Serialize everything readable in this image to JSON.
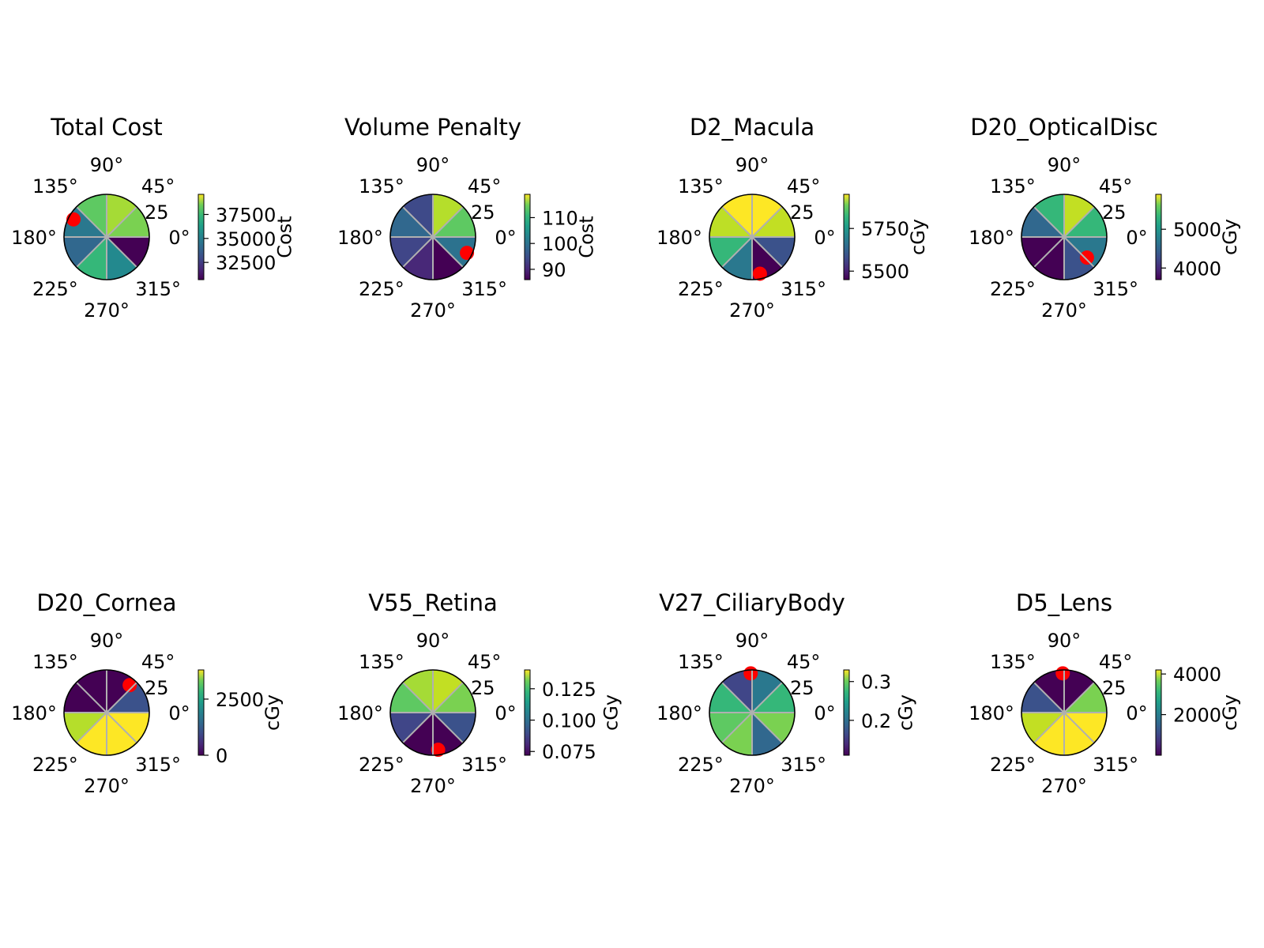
{
  "chart_data": [
    {
      "type": "heatmap",
      "projection": "polar",
      "title": "Total Cost",
      "angle_ticks": [
        "0°",
        "45°",
        "90°",
        "135°",
        "180°",
        "225°",
        "270°",
        "315°"
      ],
      "radial_ticks": [
        "25"
      ],
      "rmax": 25,
      "colormap": "viridis",
      "colorbar": {
        "label": "Cost",
        "range": [
          30700,
          39600
        ],
        "ticks": [
          32500,
          35000,
          37500
        ],
        "tick_labels": [
          "32500",
          "35000",
          "37500"
        ]
      },
      "grid_colors": [
        "#7ad151",
        "#a5db36",
        "#5ec962",
        "#2a788e",
        "#31688e",
        "#35b779",
        "#23898e",
        "#440154"
      ],
      "highlight": {
        "color": "#ff0000",
        "angle_deg": 152,
        "radius": 22
      }
    },
    {
      "type": "heatmap",
      "projection": "polar",
      "title": "Volume Penalty",
      "angle_ticks": [
        "0°",
        "45°",
        "90°",
        "135°",
        "180°",
        "225°",
        "270°",
        "315°"
      ],
      "radial_ticks": [
        "25"
      ],
      "rmax": 25,
      "colormap": "viridis",
      "colorbar": {
        "label": "Cost",
        "range": [
          86,
          119
        ],
        "ticks": [
          90,
          100,
          110
        ],
        "tick_labels": [
          "90",
          "100",
          "110"
        ]
      },
      "grid_colors": [
        "#5ec962",
        "#b5de2b",
        "#3e4a89",
        "#31688e",
        "#404688",
        "#482878",
        "#440154",
        "#2c728e"
      ],
      "highlight": {
        "color": "#ff0000",
        "angle_deg": 335,
        "radius": 22
      }
    },
    {
      "type": "heatmap",
      "projection": "polar",
      "title": "D2_Macula",
      "angle_ticks": [
        "0°",
        "45°",
        "90°",
        "135°",
        "180°",
        "225°",
        "270°",
        "315°"
      ],
      "radial_ticks": [
        "25"
      ],
      "rmax": 25,
      "colormap": "viridis",
      "colorbar": {
        "label": "cGy",
        "range": [
          5450,
          5950
        ],
        "ticks": [
          5500,
          5750
        ],
        "tick_labels": [
          "5500",
          "5750"
        ]
      },
      "grid_colors": [
        "#c2df23",
        "#fde725",
        "#fde725",
        "#bddf26",
        "#35b779",
        "#2a788e",
        "#440154",
        "#3b528b"
      ],
      "highlight": {
        "color": "#ff0000",
        "angle_deg": 282,
        "radius": 22
      }
    },
    {
      "type": "heatmap",
      "projection": "polar",
      "title": "D20_OpticalDisc",
      "angle_ticks": [
        "0°",
        "45°",
        "90°",
        "135°",
        "180°",
        "225°",
        "270°",
        "315°"
      ],
      "radial_ticks": [
        "25"
      ],
      "rmax": 25,
      "colormap": "viridis",
      "colorbar": {
        "label": "cGy",
        "range": [
          3700,
          5900
        ],
        "ticks": [
          4000,
          5000
        ],
        "tick_labels": [
          "4000",
          "5000"
        ]
      },
      "grid_colors": [
        "#35b779",
        "#c2df23",
        "#35b779",
        "#31688e",
        "#440154",
        "#440154",
        "#3b528b",
        "#2a788e"
      ],
      "highlight": {
        "color": "#ff0000",
        "angle_deg": 318,
        "radius": 18
      }
    },
    {
      "type": "heatmap",
      "projection": "polar",
      "title": "D20_Cornea",
      "angle_ticks": [
        "0°",
        "45°",
        "90°",
        "135°",
        "180°",
        "225°",
        "270°",
        "315°"
      ],
      "radial_ticks": [
        "25"
      ],
      "rmax": 25,
      "colormap": "viridis",
      "colorbar": {
        "label": "cGy",
        "range": [
          0,
          3800
        ],
        "ticks": [
          0,
          2500
        ],
        "tick_labels": [
          "0",
          "2500"
        ]
      },
      "grid_colors": [
        "#3b528b",
        "#440154",
        "#440154",
        "#440154",
        "#b5de2b",
        "#fde725",
        "#fde725",
        "#fde725"
      ],
      "highlight": {
        "color": "#ff0000",
        "angle_deg": 50,
        "radius": 21
      }
    },
    {
      "type": "heatmap",
      "projection": "polar",
      "title": "V55_Retina",
      "angle_ticks": [
        "0°",
        "45°",
        "90°",
        "135°",
        "180°",
        "225°",
        "270°",
        "315°"
      ],
      "radial_ticks": [
        "25"
      ],
      "rmax": 25,
      "colormap": "viridis",
      "colorbar": {
        "label": "cGy",
        "range": [
          0.072,
          0.14
        ],
        "ticks": [
          0.075,
          0.1,
          0.125
        ],
        "tick_labels": [
          "0.075",
          "0.100",
          "0.125"
        ]
      },
      "grid_colors": [
        "#7ad151",
        "#c2df23",
        "#a5db36",
        "#5ec962",
        "#404688",
        "#440154",
        "#440154",
        "#3b528b"
      ],
      "highlight": {
        "color": "#ff0000",
        "angle_deg": 278,
        "radius": 22
      }
    },
    {
      "type": "heatmap",
      "projection": "polar",
      "title": "V27_CiliaryBody",
      "angle_ticks": [
        "0°",
        "45°",
        "90°",
        "135°",
        "180°",
        "225°",
        "270°",
        "315°"
      ],
      "radial_ticks": [
        "25"
      ],
      "rmax": 25,
      "colormap": "viridis",
      "colorbar": {
        "label": "cGy",
        "range": [
          0.11,
          0.33
        ],
        "ticks": [
          0.2,
          0.3
        ],
        "tick_labels": [
          "0.2",
          "0.3"
        ]
      },
      "grid_colors": [
        "#35b779",
        "#2a788e",
        "#404688",
        "#35b779",
        "#5ec962",
        "#7ad151",
        "#31688e",
        "#7ad151"
      ],
      "highlight": {
        "color": "#ff0000",
        "angle_deg": 92,
        "radius": 23
      }
    },
    {
      "type": "heatmap",
      "projection": "polar",
      "title": "D5_Lens",
      "angle_ticks": [
        "0°",
        "45°",
        "90°",
        "135°",
        "180°",
        "225°",
        "270°",
        "315°"
      ],
      "radial_ticks": [
        "25"
      ],
      "rmax": 25,
      "colormap": "viridis",
      "colorbar": {
        "label": "cGy",
        "range": [
          0,
          4200
        ],
        "ticks": [
          2000,
          4000
        ],
        "tick_labels": [
          "2000",
          "4000"
        ]
      },
      "grid_colors": [
        "#7ad151",
        "#440154",
        "#440154",
        "#3b528b",
        "#c2df23",
        "#fde725",
        "#fde725",
        "#fde725"
      ],
      "highlight": {
        "color": "#ff0000",
        "angle_deg": 92,
        "radius": 23
      }
    }
  ]
}
